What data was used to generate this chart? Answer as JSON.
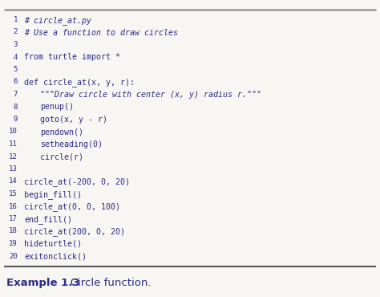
{
  "background_color": "#f7f6f2",
  "border_color": "#555555",
  "lines": [
    {
      "num": 1,
      "indent": 0,
      "text": "# circle_at.py",
      "style": "italic"
    },
    {
      "num": 2,
      "indent": 0,
      "text": "# Use a function to draw circles",
      "style": "italic"
    },
    {
      "num": 3,
      "indent": 0,
      "text": "",
      "style": "normal"
    },
    {
      "num": 4,
      "indent": 0,
      "text": "from turtle import *",
      "style": "normal"
    },
    {
      "num": 5,
      "indent": 0,
      "text": "",
      "style": "normal"
    },
    {
      "num": 6,
      "indent": 0,
      "text": "def circle_at(x, y, r):",
      "style": "normal"
    },
    {
      "num": 7,
      "indent": 1,
      "text": "\"\"\"Draw circle with center (x, y) radius r.\"\"\"",
      "style": "italic"
    },
    {
      "num": 8,
      "indent": 1,
      "text": "penup()",
      "style": "normal"
    },
    {
      "num": 9,
      "indent": 1,
      "text": "goto(x, y - r)",
      "style": "normal"
    },
    {
      "num": 10,
      "indent": 1,
      "text": "pendown()",
      "style": "normal"
    },
    {
      "num": 11,
      "indent": 1,
      "text": "setheading(0)",
      "style": "normal"
    },
    {
      "num": 12,
      "indent": 1,
      "text": "circle(r)",
      "style": "normal"
    },
    {
      "num": 13,
      "indent": 0,
      "text": "",
      "style": "normal"
    },
    {
      "num": 14,
      "indent": 0,
      "text": "circle_at(-200, 0, 20)",
      "style": "normal"
    },
    {
      "num": 15,
      "indent": 0,
      "text": "begin_fill()",
      "style": "normal"
    },
    {
      "num": 16,
      "indent": 0,
      "text": "circle_at(0, 0, 100)",
      "style": "normal"
    },
    {
      "num": 17,
      "indent": 0,
      "text": "end_fill()",
      "style": "normal"
    },
    {
      "num": 18,
      "indent": 0,
      "text": "circle_at(200, 0, 20)",
      "style": "normal"
    },
    {
      "num": 19,
      "indent": 0,
      "text": "hideturtle()",
      "style": "normal"
    },
    {
      "num": 20,
      "indent": 0,
      "text": "exitonclick()",
      "style": "normal"
    }
  ],
  "code_font_size": 7.2,
  "linenum_font_size": 6.5,
  "caption_bold_text": "Example 1.3",
  "caption_normal_text": "   Circle function.",
  "caption_font_size": 9.5,
  "text_color": "#2b2b8a",
  "linenum_color": "#2b2b8a",
  "caption_color": "#2b2b8a"
}
